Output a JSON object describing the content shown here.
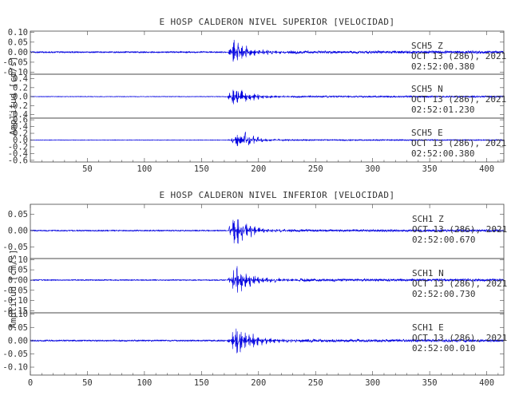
{
  "chart_data": [
    {
      "type": "line",
      "title": "E HOSP CALDERON NIVEL SUPERIOR [VELOCIDAD]",
      "ylabel": "Amplitud [cm/s]",
      "xlim": [
        0,
        415
      ],
      "x_ticks": [
        "50",
        "100",
        "150",
        "200",
        "250",
        "300",
        "350",
        "400"
      ],
      "series_color": "#0000e0",
      "series": [
        {
          "component": "SCH5   Z",
          "date": "OCT 13 (286), 2021",
          "time": "02:52:00.380",
          "ylim": [
            -0.11,
            0.105
          ],
          "y_ticks": [
            "0.10",
            "0.05",
            "0.00",
            "-0.05",
            "-0.10"
          ],
          "envelope": {
            "onset": 171,
            "peak": 178,
            "peak_amp": 0.1,
            "decay": 12,
            "noise": 0.004,
            "tail": 0.008
          }
        },
        {
          "component": "SCH5   N",
          "date": "OCT 13 (286), 2021",
          "time": "02:52:01.230",
          "ylim": [
            -0.48,
            0.5
          ],
          "y_ticks": [
            "0.4",
            "0.2",
            "0.0",
            "-0.2",
            "-0.4"
          ],
          "envelope": {
            "onset": 170,
            "peak": 178,
            "peak_amp": 0.38,
            "decay": 13,
            "noise": 0.008,
            "tail": 0.02
          }
        },
        {
          "component": "SCH5   E",
          "date": "OCT 13 (286), 2021",
          "time": "02:52:00.380",
          "ylim": [
            -0.65,
            0.65
          ],
          "y_ticks": [
            "0.6",
            "0.4",
            "0.2",
            "0.0",
            "-0.2",
            "-0.4",
            "-0.6"
          ],
          "envelope": {
            "onset": 172,
            "peak": 183,
            "peak_amp": 0.55,
            "decay": 10,
            "noise": 0.01,
            "tail": 0.02
          }
        }
      ]
    },
    {
      "type": "line",
      "title": "E HOSP CALDERON NIVEL INFERIOR [VELOCIDAD]",
      "ylabel": "Amplitud [cm/s]",
      "xlim": [
        0,
        415
      ],
      "x_ticks": [
        "0",
        "50",
        "100",
        "150",
        "200",
        "250",
        "300",
        "350",
        "400"
      ],
      "series_color": "#0000e0",
      "series": [
        {
          "component": "SCH1   Z",
          "date": "OCT 13 (286), 2021",
          "time": "02:52:00.670",
          "ylim": [
            -0.085,
            0.08
          ],
          "y_ticks": [
            "0.05",
            "0.00",
            "-0.05"
          ],
          "envelope": {
            "onset": 171,
            "peak": 179,
            "peak_amp": 0.075,
            "decay": 12,
            "noise": 0.002,
            "tail": 0.004
          }
        },
        {
          "component": "SCH1   N",
          "date": "OCT 13 (286), 2021",
          "time": "02:52:00.730",
          "ylim": [
            -0.16,
            0.105
          ],
          "y_ticks": [
            "0.10",
            "0.05",
            "0.00",
            "-0.05",
            "-0.10",
            "-0.15"
          ],
          "envelope": {
            "onset": 171,
            "peak": 179,
            "peak_amp": 0.1,
            "decay": 14,
            "noise": 0.003,
            "tail": 0.007
          }
        },
        {
          "component": "SCH1   E",
          "date": "OCT 13 (286), 2021",
          "time": "02:52:00.010",
          "ylim": [
            -0.13,
            0.105
          ],
          "y_ticks": [
            "0.10",
            "0.05",
            "0.00",
            "-0.05",
            "-0.10"
          ],
          "envelope": {
            "onset": 171,
            "peak": 180,
            "peak_amp": 0.1,
            "decay": 14,
            "noise": 0.003,
            "tail": 0.006
          }
        }
      ]
    }
  ]
}
